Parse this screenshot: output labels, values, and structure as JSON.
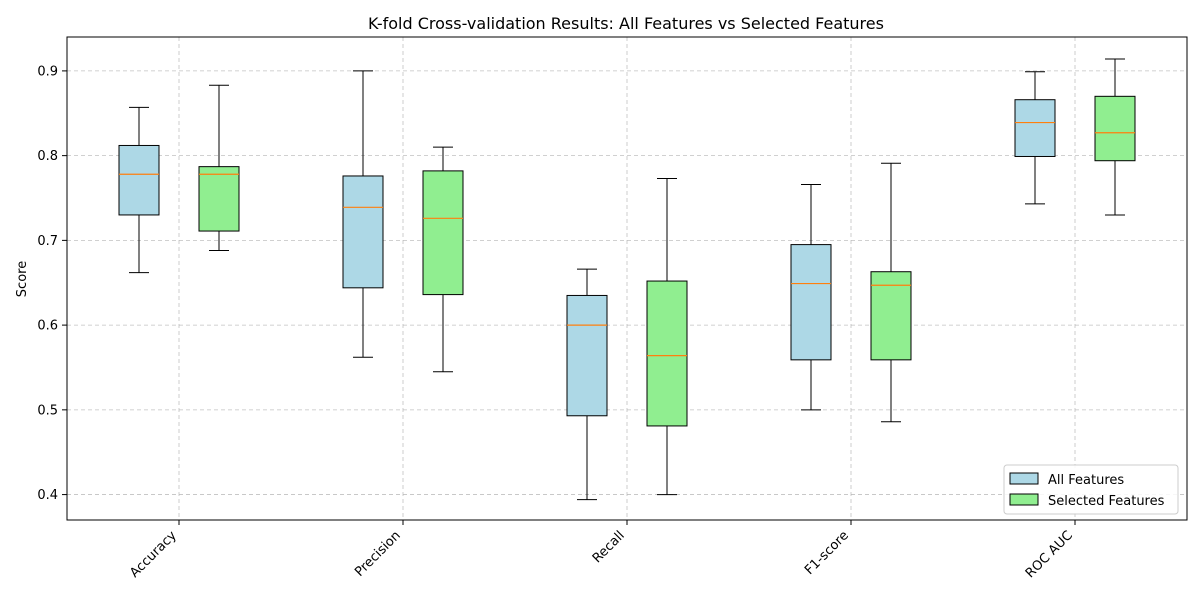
{
  "chart_data": {
    "type": "boxplot",
    "title": "K-fold Cross-validation Results: All Features vs Selected Features",
    "xlabel": "",
    "ylabel": "Score",
    "ylim": [
      0.37,
      0.94
    ],
    "yticks": [
      0.4,
      0.5,
      0.6,
      0.7,
      0.8,
      0.9
    ],
    "grid": true,
    "legend_position": "lower-right",
    "categories": [
      "Accuracy",
      "Precision",
      "Recall",
      "F1-score",
      "ROC AUC"
    ],
    "series": [
      {
        "name": "All Features",
        "color": "#add8e6",
        "boxes": [
          {
            "whisker_low": 0.662,
            "q1": 0.73,
            "median": 0.778,
            "q3": 0.812,
            "whisker_high": 0.857
          },
          {
            "whisker_low": 0.562,
            "q1": 0.644,
            "median": 0.739,
            "q3": 0.776,
            "whisker_high": 0.9
          },
          {
            "whisker_low": 0.394,
            "q1": 0.493,
            "median": 0.6,
            "q3": 0.635,
            "whisker_high": 0.666
          },
          {
            "whisker_low": 0.5,
            "q1": 0.559,
            "median": 0.649,
            "q3": 0.695,
            "whisker_high": 0.766
          },
          {
            "whisker_low": 0.743,
            "q1": 0.799,
            "median": 0.839,
            "q3": 0.866,
            "whisker_high": 0.899
          }
        ]
      },
      {
        "name": "Selected Features",
        "color": "#90ee90",
        "boxes": [
          {
            "whisker_low": 0.688,
            "q1": 0.711,
            "median": 0.778,
            "q3": 0.787,
            "whisker_high": 0.883
          },
          {
            "whisker_low": 0.545,
            "q1": 0.636,
            "median": 0.726,
            "q3": 0.782,
            "whisker_high": 0.81
          },
          {
            "whisker_low": 0.4,
            "q1": 0.481,
            "median": 0.564,
            "q3": 0.652,
            "whisker_high": 0.773
          },
          {
            "whisker_low": 0.486,
            "q1": 0.559,
            "median": 0.647,
            "q3": 0.663,
            "whisker_high": 0.791
          },
          {
            "whisker_low": 0.73,
            "q1": 0.794,
            "median": 0.827,
            "q3": 0.87,
            "whisker_high": 0.914
          }
        ]
      }
    ],
    "median_color": "#ff7f0e",
    "grid_color": "#b0b0b0"
  }
}
